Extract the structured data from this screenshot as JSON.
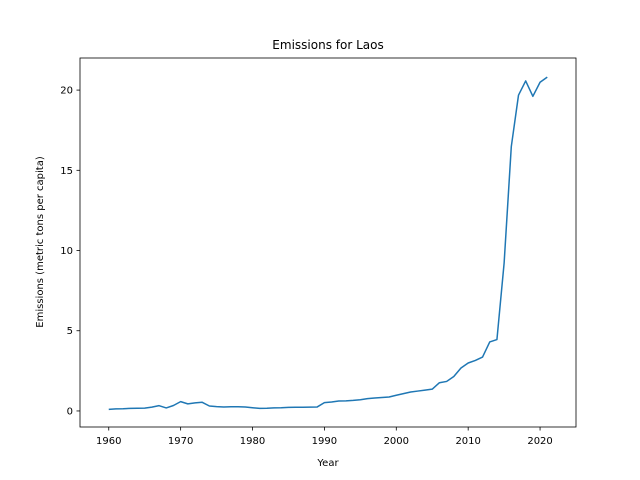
{
  "chart_data": {
    "type": "line",
    "title": "Emissions for Laos",
    "xlabel": "Year",
    "ylabel": "Emissions (metric tons per capita)",
    "xlim": [
      1956,
      2025
    ],
    "ylim": [
      -1,
      22
    ],
    "xticks": [
      1960,
      1970,
      1980,
      1990,
      2000,
      2010,
      2020
    ],
    "yticks": [
      0,
      5,
      10,
      15,
      20
    ],
    "grid": false,
    "color": "#1f77b4",
    "x": [
      1960,
      1961,
      1962,
      1963,
      1964,
      1965,
      1966,
      1967,
      1968,
      1969,
      1970,
      1971,
      1972,
      1973,
      1974,
      1975,
      1976,
      1977,
      1978,
      1979,
      1980,
      1981,
      1982,
      1983,
      1984,
      1985,
      1986,
      1987,
      1988,
      1989,
      1990,
      1991,
      1992,
      1993,
      1994,
      1995,
      1996,
      1997,
      1998,
      1999,
      2000,
      2001,
      2002,
      2003,
      2004,
      2005,
      2006,
      2007,
      2008,
      2009,
      2010,
      2011,
      2012,
      2013,
      2014,
      2015,
      2016,
      2017,
      2018,
      2019,
      2020,
      2021
    ],
    "y": [
      0.1,
      0.13,
      0.14,
      0.16,
      0.17,
      0.18,
      0.24,
      0.33,
      0.19,
      0.34,
      0.58,
      0.44,
      0.5,
      0.54,
      0.31,
      0.27,
      0.25,
      0.26,
      0.26,
      0.25,
      0.2,
      0.16,
      0.17,
      0.19,
      0.2,
      0.22,
      0.23,
      0.23,
      0.24,
      0.25,
      0.52,
      0.56,
      0.62,
      0.63,
      0.66,
      0.7,
      0.77,
      0.81,
      0.84,
      0.87,
      0.98,
      1.08,
      1.18,
      1.24,
      1.3,
      1.36,
      1.76,
      1.84,
      2.15,
      2.68,
      2.99,
      3.15,
      3.36,
      4.3,
      4.45,
      9.22,
      16.48,
      19.68,
      20.57,
      19.61,
      20.49,
      20.81
    ]
  }
}
